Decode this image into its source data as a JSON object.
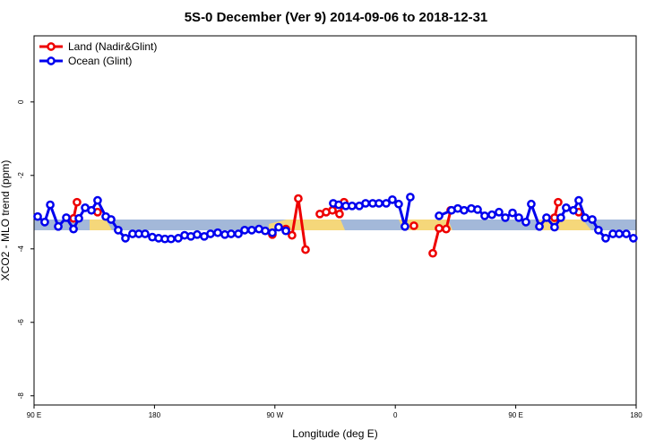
{
  "chart_data": {
    "type": "line",
    "title": "5S-0 December (Ver 9)   2014-09-06 to 2018-12-31",
    "x_label": "Longitude (deg E)",
    "y_label": "XCO2 - MLO trend (ppm)",
    "xlim": [
      90,
      540
    ],
    "xticks": [
      {
        "value": 90,
        "label": "90 E"
      },
      180,
      {
        "value": 270,
        "label": "90 W"
      },
      {
        "value": 360,
        "label": "0"
      },
      {
        "value": 450,
        "label": "90 E"
      },
      {
        "value": 540,
        "label": "180"
      }
    ],
    "ylim": [
      -8.25,
      1.8
    ],
    "yticks": [
      0,
      -2,
      -4,
      -6,
      -8
    ],
    "legend": "top-left",
    "series": [
      {
        "name": "Land (Nadir&Glint)",
        "color": "#ee0000",
        "x": [
          119.5,
          122.1,
          null,
          137.5,
          null,
          268.1,
          null,
          278.2,
          282.8,
          287.5,
          292.9,
          null,
          303.6,
          308.3,
          313.0,
          318.3,
          321.7,
          null,
          373.9,
          null,
          388.0,
          392.7,
          398.0,
          401.4,
          null,
          479.0,
          481.7,
          null,
          497.1
        ],
        "values": [
          -3.17,
          -2.73,
          null,
          -3.0,
          null,
          -3.61,
          null,
          -3.46,
          -3.63,
          -2.63,
          -4.02,
          null,
          -3.05,
          -3.0,
          -2.95,
          -3.05,
          -2.73,
          null,
          -3.37,
          null,
          -4.12,
          -3.44,
          -3.46,
          -2.95,
          null,
          -3.15,
          -2.73,
          null,
          -3.0
        ]
      },
      {
        "name": "Ocean (Glint)",
        "color": "#0000ee",
        "x": [
          92.7,
          98.0,
          102.1,
          108.1,
          114.1,
          119.5,
          123.5,
          128.2,
          132.9,
          137.5,
          143.6,
          147.6,
          152.9,
          158.3,
          163.6,
          168.3,
          173.0,
          178.4,
          183.1,
          187.8,
          192.4,
          197.8,
          202.5,
          207.2,
          211.9,
          217.2,
          221.9,
          227.3,
          232.6,
          237.3,
          242.7,
          247.4,
          252.7,
          258.1,
          262.8,
          268.1,
          272.8,
          278.2,
          null,
          313.6,
          317.7,
          323.0,
          327.7,
          333.1,
          337.8,
          343.1,
          347.8,
          353.2,
          357.8,
          362.5,
          367.2,
          371.2,
          null,
          392.7,
          402.0,
          406.7,
          411.4,
          416.8,
          421.5,
          426.8,
          432.2,
          437.5,
          442.2,
          447.6,
          452.3,
          457.6,
          461.6,
          467.7,
          473.0,
          479.0,
          483.7,
          487.7,
          493.1,
          497.1,
          501.8,
          507.2,
          511.8,
          517.2,
          522.6,
          527.3,
          532.6,
          537.9
        ],
        "values": [
          -3.12,
          -3.27,
          -2.8,
          -3.39,
          -3.15,
          -3.46,
          -3.17,
          -2.88,
          -2.95,
          -2.68,
          -3.12,
          -3.2,
          -3.49,
          -3.71,
          -3.59,
          -3.59,
          -3.59,
          -3.68,
          -3.71,
          -3.73,
          -3.73,
          -3.71,
          -3.63,
          -3.66,
          -3.61,
          -3.66,
          -3.59,
          -3.56,
          -3.61,
          -3.59,
          -3.59,
          -3.49,
          -3.49,
          -3.46,
          -3.51,
          -3.56,
          -3.41,
          -3.51,
          null,
          -2.76,
          -2.8,
          -2.83,
          -2.83,
          -2.83,
          -2.76,
          -2.76,
          -2.76,
          -2.76,
          -2.66,
          -2.78,
          -3.39,
          -2.59,
          null,
          -3.1,
          -2.95,
          -2.9,
          -2.95,
          -2.9,
          -2.93,
          -3.1,
          -3.07,
          -3.0,
          -3.15,
          -3.02,
          -3.15,
          -3.27,
          -2.78,
          -3.39,
          -3.15,
          -3.41,
          -3.15,
          -2.88,
          -2.95,
          -2.68,
          -3.15,
          -3.2,
          -3.49,
          -3.71,
          -3.59,
          -3.59,
          -3.59,
          -3.71
        ]
      }
    ]
  }
}
